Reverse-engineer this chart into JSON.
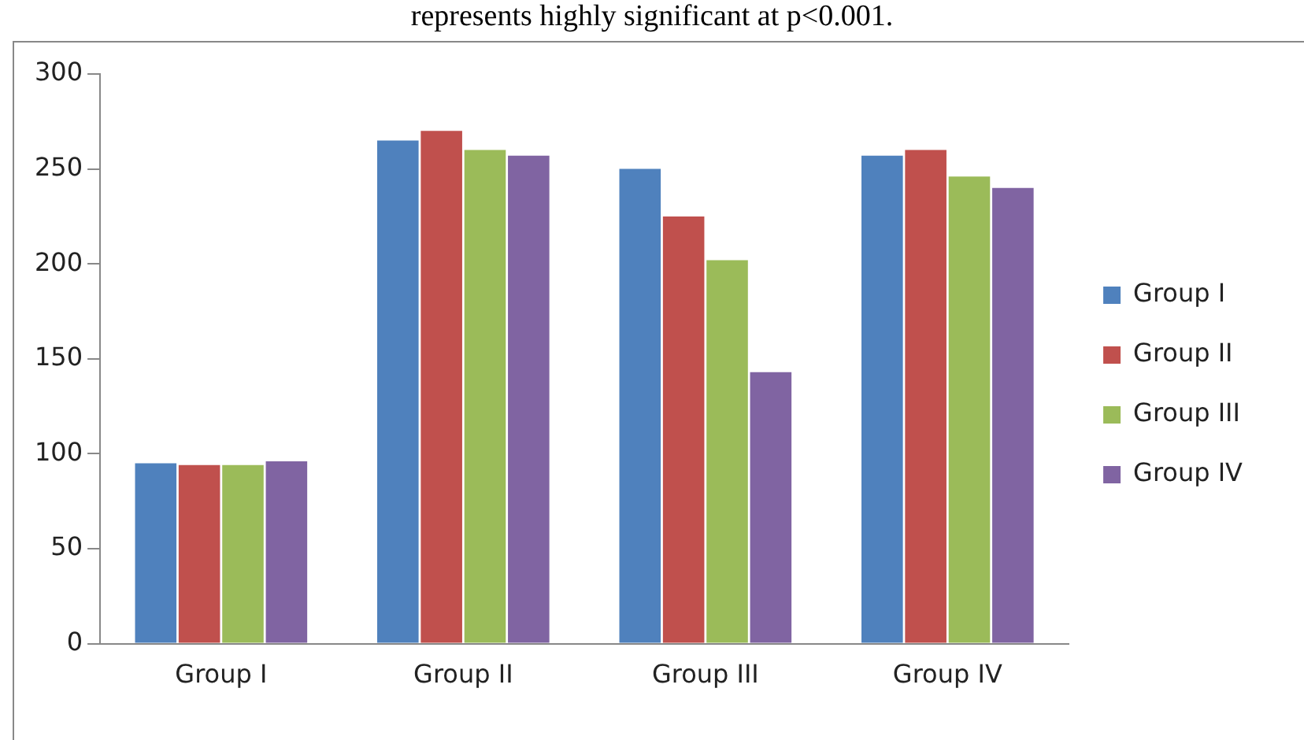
{
  "chart_data": {
    "type": "bar",
    "annotations": [
      "represents highly significant at p<0.001."
    ],
    "categories": [
      "Group I",
      "Group II",
      "Group III",
      "Group IV"
    ],
    "series": [
      {
        "name": "Group I",
        "color": "#4f81bd",
        "values": [
          95,
          265,
          250,
          257
        ]
      },
      {
        "name": "Group II",
        "color": "#c0504d",
        "values": [
          94,
          270,
          225,
          260
        ]
      },
      {
        "name": "Group III",
        "color": "#9bbb59",
        "values": [
          94,
          260,
          202,
          246
        ]
      },
      {
        "name": "Group IV",
        "color": "#8064a2",
        "values": [
          96,
          257,
          143,
          240
        ]
      }
    ],
    "ylim": [
      0,
      300
    ],
    "yticks": [
      0,
      50,
      100,
      150,
      200,
      250,
      300
    ],
    "grid": false,
    "legend": "right"
  }
}
